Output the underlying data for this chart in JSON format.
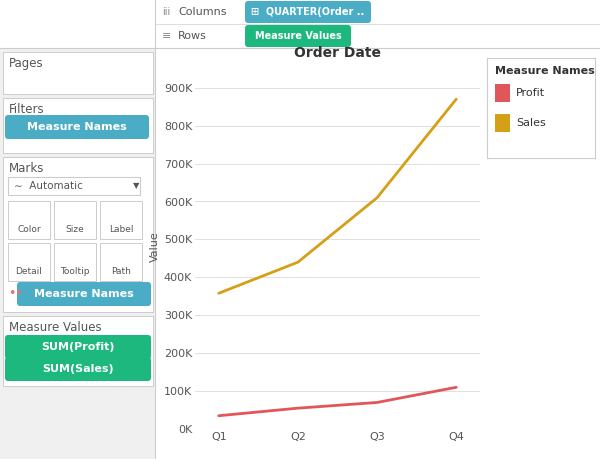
{
  "quarters": [
    "Q1",
    "Q2",
    "Q3",
    "Q4"
  ],
  "profit": [
    35000,
    55000,
    70000,
    110000
  ],
  "sales": [
    358000,
    440000,
    610000,
    870000
  ],
  "profit_color": "#e15759",
  "sales_color": "#d4a017",
  "title": "Order Date",
  "ylabel": "Value",
  "yticks": [
    0,
    100000,
    200000,
    300000,
    400000,
    500000,
    600000,
    700000,
    800000,
    900000
  ],
  "ytick_labels": [
    "0K",
    "100K",
    "200K",
    "300K",
    "400K",
    "500K",
    "600K",
    "700K",
    "800K",
    "900K"
  ],
  "bg_color": "#eeeeee",
  "panel_bg": "#ffffff",
  "sidebar_bg": "#f0f0f0",
  "teal_color": "#4bacc6",
  "green_color": "#1db87e",
  "legend_title": "Measure Names",
  "legend_profit": "Profit",
  "legend_sales": "Sales",
  "pages_label": "Pages",
  "filters_label": "Filters",
  "marks_label": "Marks",
  "measure_names_label": "Measure Names",
  "measure_values_label": "Measure Values",
  "sum_profit_label": "SUM(Profit)",
  "sum_sales_label": "SUM(Sales)",
  "automatic_label": "Automatic",
  "color_label": "Color",
  "size_label": "Size",
  "label_label": "Label",
  "detail_label": "Detail",
  "tooltip_label": "Tooltip",
  "path_label": "Path",
  "quarter_col_label": "QUARTER(Order ..",
  "measure_values_row_label": "Measure Values",
  "columns_label": "Columns",
  "rows_label": "Rows"
}
